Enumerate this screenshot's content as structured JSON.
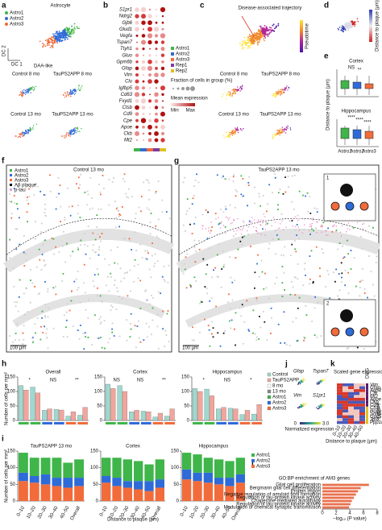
{
  "figure": {
    "a": {
      "letter": "a",
      "title": "Astrocyte",
      "legend": [
        "Astro1",
        "Astro2",
        "Astro3"
      ],
      "annotation": "DAA-like",
      "x_label": "DC 1",
      "y_label": "DC 2",
      "subplots": [
        "Control 8 mo",
        "TauPS2APP 8 mo",
        "Control 13 mo",
        "TauPS2APP 13 mo"
      ]
    },
    "b": {
      "letter": "b",
      "genes": [
        "S1pr1",
        "Ndrg2",
        "Gjb6",
        "Glud1",
        "Vegfa",
        "Tspan7",
        "Ttyh1",
        "Gluo",
        "Gpm6b",
        "Gfap",
        "Vim",
        "Clu",
        "Igfbp5",
        "Cd63",
        "Fxyd1",
        "Ctsb",
        "Cd9",
        "Cpe",
        "Apoe",
        "Ckb",
        "Mt2"
      ],
      "legend": [
        "Astro1",
        "Astro2",
        "Astro3",
        "Rep1",
        "Rep2"
      ],
      "size_title": "Fraction of cells in group (%)",
      "color_title": "Mean expression",
      "color_min": "Min",
      "color_max": "Max"
    },
    "c": {
      "letter": "c",
      "annotation": "Disease-associated trajectory",
      "colorbar": "Pseudotime",
      "subplots": [
        "Control 8 mo",
        "TauPS2APP 8 mo",
        "Control 13 mo",
        "TauPS2APP 13 mo"
      ]
    },
    "d": {
      "letter": "d",
      "colorbar": "Distance to plaque (µm)"
    },
    "e": {
      "letter": "e",
      "regions": [
        "Cortex",
        "Hippocampus"
      ],
      "y_label": "Distance to plaque (µm)",
      "categories": [
        "Astro1",
        "Astro2",
        "Astro3"
      ],
      "sig_cortex": [
        "NS",
        "**"
      ],
      "sig_hippocampus": [
        "****",
        "****",
        "****"
      ]
    },
    "f": {
      "letter": "f",
      "title": "Control 13 mo",
      "legend": [
        "Astro1",
        "Astro2",
        "Astro3",
        "Aβ plaque",
        "p-tau"
      ],
      "scale": "100 µm"
    },
    "g": {
      "letter": "g",
      "title": "TauPS2APP 13 mo",
      "scale": "100 µm",
      "insets": [
        "1",
        "2"
      ]
    },
    "h": {
      "letter": "h",
      "y_label": "Number of cells per mm²",
      "legend": [
        "Control",
        "TauPS2APP",
        "8 mo",
        "13 mo",
        "Astro1",
        "Astro2",
        "Astro3"
      ]
    },
    "i": {
      "letter": "i",
      "y_label": "Number of cells per mm²",
      "x_label": "Distance to plaque (µm)"
    },
    "j": {
      "letter": "j",
      "genes": [
        "Gfap",
        "Tspan7",
        "Vim",
        "S1pr1"
      ],
      "colorbar_min": "0",
      "colorbar_max": "3.0",
      "x_label": "Normalized expression"
    },
    "k": {
      "letter": "k",
      "title": "Scaled gene expression",
      "genes": [
        "Vim",
        "Gfap",
        "Aqp4",
        "Clu",
        "Mt2",
        "Apoe",
        "Ckb",
        "Cd9",
        "Ctsb",
        "Hope",
        "Snap",
        "Gpc5",
        "Jpt4",
        "Ppp1r9b"
      ],
      "x_labels": [
        "0–10",
        "10–20",
        "20–30",
        "30–40",
        "40–50"
      ],
      "x_label": "Distance to plaque (µm)",
      "legend_title": "z-score",
      "group_label": "DEG"
    },
    "l": {
      "letter": "l"
    }
  },
  "chart_data": [
    {
      "type": "bar",
      "title": "Overall",
      "categories": [
        null,
        null,
        null,
        null,
        null,
        null
      ],
      "series": [
        {
          "name": "Control",
          "color": "#9fd8cf",
          "values": [
            120,
            115,
            35,
            38,
            15,
            18
          ]
        },
        {
          "name": "TauPS2APP",
          "color": "#f2a59c",
          "values": [
            105,
            95,
            40,
            36,
            30,
            45
          ]
        }
      ],
      "ylim": [
        0,
        150
      ],
      "yticks": [
        0,
        50,
        100,
        150
      ],
      "annotations": [
        "*",
        "NS",
        "**"
      ]
    },
    {
      "type": "bar",
      "title": "Cortex",
      "categories": [
        null,
        null,
        null,
        null,
        null,
        null
      ],
      "series": [
        {
          "name": "Control",
          "color": "#9fd8cf",
          "values": [
            125,
            120,
            30,
            32,
            12,
            15
          ]
        },
        {
          "name": "TauPS2APP",
          "color": "#f2a59c",
          "values": [
            110,
            100,
            35,
            30,
            25,
            40
          ]
        }
      ],
      "ylim": [
        0,
        150
      ],
      "yticks": [
        0,
        50,
        100,
        150
      ],
      "annotations": [
        "NS",
        "NS",
        "**"
      ]
    },
    {
      "type": "bar",
      "title": "Hippocampus",
      "categories": [
        null,
        null,
        null,
        null,
        null,
        null
      ],
      "series": [
        {
          "name": "Control",
          "color": "#9fd8cf",
          "values": [
            110,
            108,
            40,
            42,
            20,
            22
          ]
        },
        {
          "name": "TauPS2APP",
          "color": "#f2a59c",
          "values": [
            100,
            85,
            45,
            40,
            35,
            55
          ]
        }
      ],
      "ylim": [
        0,
        150
      ],
      "yticks": [
        0,
        50,
        100,
        150
      ],
      "annotations": [
        "*",
        "NS",
        "*"
      ]
    },
    {
      "type": "stacked",
      "title": "TauPS2APP 13 mo",
      "categories": [
        "0–10",
        "10–20",
        "20–30",
        "30–40",
        "40–50",
        "Overall"
      ],
      "series": [
        {
          "name": "Astro1",
          "color": "#3fb54a",
          "values": [
            60,
            55,
            50,
            60,
            45,
            55
          ]
        },
        {
          "name": "Astro2",
          "color": "#2f6bd8",
          "values": [
            25,
            20,
            30,
            25,
            30,
            25
          ]
        },
        {
          "name": "Astro3",
          "color": "#f26b3a",
          "values": [
            60,
            55,
            50,
            45,
            40,
            45
          ]
        }
      ],
      "ylim": [
        0,
        150
      ],
      "yticks": [
        0,
        50,
        100,
        150
      ]
    },
    {
      "type": "stacked",
      "title": "Cortex",
      "categories": [
        "0–10",
        "10–20",
        "20–30",
        "30–40",
        "40–50",
        "Overall"
      ],
      "series": [
        {
          "name": "Astro1",
          "color": "#3fb54a",
          "values": [
            55,
            60,
            65,
            60,
            50,
            60
          ]
        },
        {
          "name": "Astro2",
          "color": "#2f6bd8",
          "values": [
            20,
            25,
            20,
            25,
            30,
            25
          ]
        },
        {
          "name": "Astro3",
          "color": "#f26b3a",
          "values": [
            55,
            45,
            40,
            35,
            30,
            40
          ]
        }
      ],
      "ylim": [
        0,
        150
      ],
      "yticks": [
        0,
        50,
        100,
        150
      ]
    },
    {
      "type": "stacked",
      "title": "Hippocampus",
      "categories": [
        "0–10",
        "10–20",
        "20–30",
        "30–40",
        "40–50",
        "Overall"
      ],
      "series": [
        {
          "name": "Astro1",
          "color": "#3fb54a",
          "values": [
            50,
            55,
            45,
            55,
            50,
            50
          ]
        },
        {
          "name": "Astro2",
          "color": "#2f6bd8",
          "values": [
            30,
            25,
            30,
            20,
            25,
            25
          ]
        },
        {
          "name": "Astro3",
          "color": "#f26b3a",
          "values": [
            65,
            60,
            55,
            50,
            45,
            55
          ]
        }
      ],
      "ylim": [
        0,
        150
      ],
      "yticks": [
        0,
        50,
        100,
        150
      ]
    },
    {
      "type": "barh",
      "title": "GO:BP enrichment of AM3 genes",
      "categories": [
        "Glial cell proliferation",
        "Bergmann glial cell differentiation",
        "Protein import",
        "Negative regulation of amyloid fibril formation",
        "Regulation of tau-protein kinase activity",
        "Chaperone-mediated autophagy",
        "Regulation of tau-protein kinase activity",
        "Modulation of chemical synaptic transmission"
      ],
      "values": [
        6.8,
        5.6,
        5.2,
        4.9,
        4.6,
        4.3,
        4.1,
        3.9
      ],
      "color": "#e8714f",
      "xlim": [
        0,
        8
      ],
      "xticks": [
        0,
        2,
        4,
        6,
        8
      ],
      "x_label": "–log₁₀ (P value)"
    }
  ]
}
